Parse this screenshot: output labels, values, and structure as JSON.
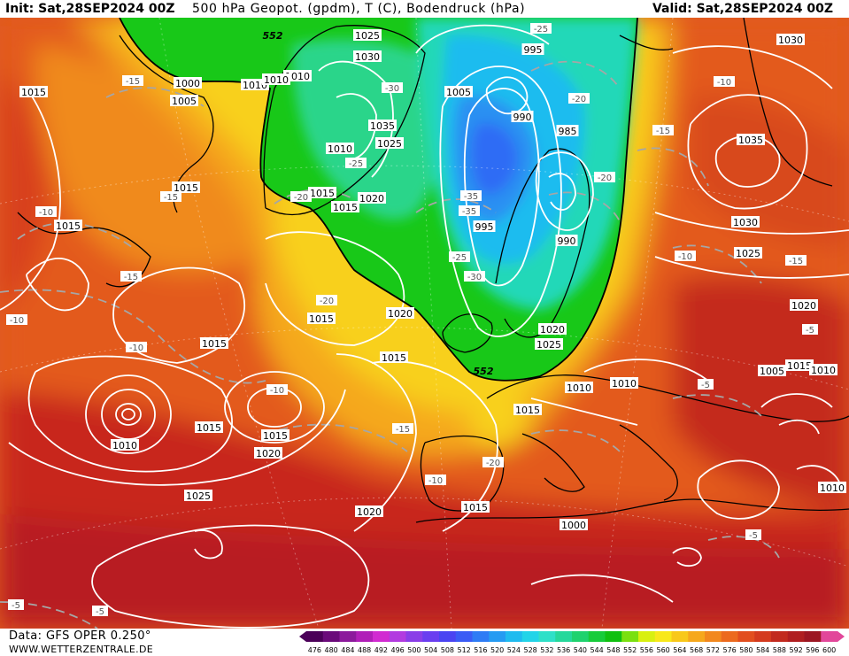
{
  "header": {
    "init": "Init: Sat,28SEP2024 00Z",
    "title": "500 hPa Geopot. (gpdm), T (C), Bodendruck (hPa)",
    "valid": "Valid: Sat,28SEP2024 00Z"
  },
  "footer": {
    "source": "Data: GFS OPER 0.250°",
    "website": "WWW.WETTERZENTRALE.DE"
  },
  "colorbar": {
    "ticks": [
      "476",
      "480",
      "484",
      "488",
      "492",
      "496",
      "500",
      "504",
      "508",
      "512",
      "516",
      "520",
      "524",
      "528",
      "532",
      "536",
      "540",
      "544",
      "548",
      "552",
      "556",
      "560",
      "564",
      "568",
      "572",
      "576",
      "580",
      "584",
      "588",
      "592",
      "596",
      "600"
    ],
    "colors": [
      "#4b0059",
      "#6a0a7a",
      "#8c1a9c",
      "#b01fb8",
      "#d12bd1",
      "#b23be0",
      "#8a3ee8",
      "#6a3ef0",
      "#4a44f2",
      "#3a5cf5",
      "#2e7cf5",
      "#259bf2",
      "#1fbbef",
      "#22d4e8",
      "#2ee0c8",
      "#25d89b",
      "#1fd26e",
      "#17cc3a",
      "#10c010",
      "#7ae010",
      "#d8f010",
      "#f8e81a",
      "#f8c81a",
      "#f6a81c",
      "#f2881e",
      "#ec6a1e",
      "#e24e1e",
      "#d43a1e",
      "#c22a1e",
      "#b01e20",
      "#9c1622",
      "#e2479a"
    ]
  },
  "map": {
    "pressure_labels": [
      "1030",
      "1025",
      "1030",
      "1015",
      "1000",
      "1005",
      "1010",
      "1010",
      "1005",
      "995",
      "990",
      "985",
      "1035",
      "1025",
      "1010",
      "1015",
      "1015",
      "1020",
      "1015",
      "995",
      "990",
      "1035",
      "1030",
      "1025",
      "1020",
      "1015",
      "1020",
      "1015",
      "1015",
      "1020",
      "1025",
      "1015",
      "1010",
      "1010",
      "1015",
      "1010",
      "1015",
      "1020",
      "1025",
      "1020",
      "1015",
      "1000",
      "1005",
      "1015",
      "1010",
      "1010",
      "1015",
      "1010"
    ],
    "temperature_labels": [
      "-15",
      "-25",
      "-20",
      "-30",
      "-35",
      "-25",
      "-20",
      "-15",
      "-10",
      "-15",
      "-20",
      "-35",
      "-30",
      "-25",
      "-20",
      "-10",
      "-10",
      "-15",
      "-10",
      "-5",
      "-10",
      "-10",
      "-15",
      "-20",
      "-10",
      "-15",
      "-5",
      "-5",
      "-5",
      "-5"
    ],
    "height_labels": [
      "552",
      "552"
    ]
  }
}
